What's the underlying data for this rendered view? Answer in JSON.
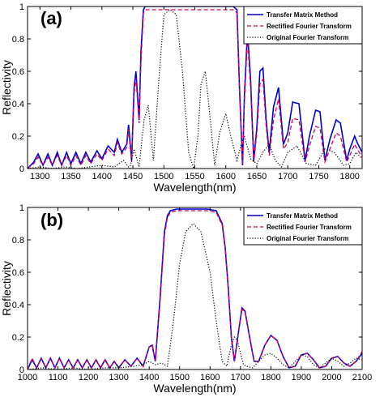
{
  "chart_data": [
    {
      "type": "line",
      "panel_label": "(a)",
      "xlabel": "Wavelength(nm)",
      "ylabel": "Reflectivity",
      "xlim": [
        1280,
        1820
      ],
      "ylim": [
        0,
        1
      ],
      "xticks": [
        "1300",
        "1350",
        "1400",
        "1450",
        "1500",
        "1550",
        "1600",
        "1650",
        "1700",
        "1750",
        "1800"
      ],
      "yticks": [
        "0",
        "0.2",
        "0.4",
        "0.6",
        "0.8",
        "1"
      ],
      "legend_position": "top-right",
      "grid": false,
      "series": [
        {
          "name": "Transfer Matrix Method",
          "color": "#0000cc",
          "style": "solid",
          "x": [
            1280,
            1290,
            1297,
            1305,
            1313,
            1320,
            1328,
            1335,
            1343,
            1350,
            1358,
            1366,
            1374,
            1382,
            1392,
            1400,
            1410,
            1420,
            1425,
            1432,
            1440,
            1443,
            1448,
            1452,
            1455,
            1460,
            1463,
            1467,
            1470,
            1475,
            1480,
            1500,
            1550,
            1600,
            1612,
            1618,
            1622,
            1627,
            1630,
            1635,
            1640,
            1645,
            1650,
            1655,
            1660,
            1665,
            1670,
            1677,
            1685,
            1693,
            1700,
            1708,
            1718,
            1728,
            1735,
            1745,
            1752,
            1760,
            1768,
            1778,
            1785,
            1795,
            1800,
            1808,
            1812,
            1820
          ],
          "y": [
            0.0,
            0.04,
            0.09,
            0.02,
            0.09,
            0.02,
            0.1,
            0.02,
            0.1,
            0.03,
            0.1,
            0.03,
            0.1,
            0.04,
            0.11,
            0.06,
            0.14,
            0.1,
            0.18,
            0.1,
            0.15,
            0.27,
            0.05,
            0.5,
            0.6,
            0.3,
            0.72,
            0.98,
            1.0,
            1.0,
            1.0,
            1.0,
            1.0,
            1.0,
            1.0,
            0.98,
            0.5,
            0.02,
            0.45,
            0.85,
            0.55,
            0.05,
            0.25,
            0.6,
            0.62,
            0.3,
            0.1,
            0.38,
            0.5,
            0.15,
            0.22,
            0.41,
            0.4,
            0.05,
            0.2,
            0.36,
            0.35,
            0.05,
            0.18,
            0.3,
            0.28,
            0.05,
            0.12,
            0.2,
            0.16,
            0.1
          ]
        },
        {
          "name": "Rectified Fourier Transform",
          "color": "#cc0066",
          "style": "dashed",
          "x": [
            1280,
            1290,
            1297,
            1305,
            1313,
            1320,
            1328,
            1335,
            1343,
            1350,
            1358,
            1366,
            1374,
            1382,
            1392,
            1400,
            1410,
            1420,
            1425,
            1432,
            1440,
            1443,
            1448,
            1452,
            1455,
            1460,
            1463,
            1467,
            1470,
            1475,
            1480,
            1500,
            1550,
            1600,
            1612,
            1618,
            1622,
            1627,
            1630,
            1635,
            1640,
            1645,
            1650,
            1655,
            1660,
            1665,
            1670,
            1677,
            1685,
            1693,
            1700,
            1708,
            1718,
            1728,
            1735,
            1745,
            1752,
            1760,
            1768,
            1778,
            1785,
            1795,
            1800,
            1808,
            1812,
            1820
          ],
          "y": [
            0.0,
            0.03,
            0.07,
            0.02,
            0.07,
            0.02,
            0.08,
            0.02,
            0.08,
            0.02,
            0.08,
            0.02,
            0.08,
            0.03,
            0.09,
            0.05,
            0.12,
            0.08,
            0.16,
            0.09,
            0.13,
            0.24,
            0.04,
            0.46,
            0.56,
            0.28,
            0.66,
            0.96,
            0.98,
            0.98,
            0.98,
            0.98,
            0.98,
            0.98,
            0.98,
            0.96,
            0.48,
            0.02,
            0.42,
            0.8,
            0.5,
            0.04,
            0.22,
            0.52,
            0.55,
            0.26,
            0.08,
            0.3,
            0.43,
            0.12,
            0.16,
            0.31,
            0.3,
            0.04,
            0.14,
            0.26,
            0.25,
            0.04,
            0.12,
            0.22,
            0.2,
            0.04,
            0.08,
            0.15,
            0.12,
            0.07
          ]
        },
        {
          "name": "Original Fourier Transform",
          "color": "#000000",
          "style": "dotted",
          "x": [
            1280,
            1300,
            1320,
            1340,
            1360,
            1380,
            1400,
            1420,
            1435,
            1445,
            1452,
            1460,
            1468,
            1475,
            1483,
            1492,
            1500,
            1510,
            1520,
            1530,
            1540,
            1548,
            1555,
            1560,
            1567,
            1575,
            1582,
            1590,
            1600,
            1608,
            1618,
            1625,
            1630,
            1640,
            1650,
            1660,
            1670,
            1680,
            1690,
            1700,
            1715,
            1730,
            1745,
            1760,
            1775,
            1790,
            1800,
            1810,
            1820
          ],
          "y": [
            0.0,
            0.01,
            0.0,
            0.01,
            0.0,
            0.01,
            0.02,
            0.01,
            0.05,
            0.0,
            0.12,
            0.01,
            0.3,
            0.39,
            0.05,
            0.55,
            0.95,
            0.98,
            0.95,
            0.6,
            0.1,
            0.0,
            0.2,
            0.52,
            0.6,
            0.3,
            0.02,
            0.22,
            0.34,
            0.2,
            0.05,
            0.15,
            0.2,
            0.06,
            0.03,
            0.1,
            0.15,
            0.05,
            0.01,
            0.1,
            0.14,
            0.03,
            0.02,
            0.12,
            0.1,
            0.02,
            0.03,
            0.1,
            0.06
          ]
        }
      ]
    },
    {
      "type": "line",
      "panel_label": "(b)",
      "xlabel": "Wavelength(nm)",
      "ylabel": "Reflectivity",
      "xlim": [
        1000,
        2100
      ],
      "ylim": [
        0,
        1
      ],
      "xticks": [
        "1000",
        "1100",
        "1200",
        "1300",
        "1400",
        "1500",
        "1600",
        "1700",
        "1800",
        "1900",
        "2000",
        "2100"
      ],
      "yticks": [
        "0",
        "0.2",
        "0.4",
        "0.6",
        "0.8",
        "1"
      ],
      "legend_position": "top-right",
      "grid": false,
      "series": [
        {
          "name": "Transfer Matrix Method",
          "color": "#0000cc",
          "style": "solid",
          "x": [
            1000,
            1015,
            1030,
            1045,
            1060,
            1075,
            1090,
            1105,
            1120,
            1135,
            1150,
            1165,
            1180,
            1195,
            1210,
            1225,
            1240,
            1255,
            1270,
            1285,
            1300,
            1320,
            1340,
            1360,
            1380,
            1400,
            1410,
            1420,
            1435,
            1450,
            1460,
            1470,
            1490,
            1520,
            1550,
            1590,
            1620,
            1640,
            1650,
            1660,
            1670,
            1680,
            1695,
            1705,
            1715,
            1730,
            1745,
            1760,
            1780,
            1800,
            1820,
            1840,
            1860,
            1880,
            1900,
            1920,
            1940,
            1960,
            1980,
            2000,
            2020,
            2040,
            2060,
            2080,
            2100
          ],
          "y": [
            0.0,
            0.06,
            0.01,
            0.07,
            0.01,
            0.07,
            0.01,
            0.07,
            0.01,
            0.06,
            0.01,
            0.06,
            0.01,
            0.06,
            0.01,
            0.06,
            0.01,
            0.06,
            0.01,
            0.05,
            0.01,
            0.06,
            0.02,
            0.07,
            0.02,
            0.14,
            0.15,
            0.05,
            0.42,
            0.85,
            0.95,
            0.98,
            0.99,
            0.99,
            0.99,
            0.99,
            0.98,
            0.9,
            0.75,
            0.5,
            0.2,
            0.05,
            0.25,
            0.38,
            0.36,
            0.2,
            0.05,
            0.05,
            0.15,
            0.21,
            0.18,
            0.08,
            0.01,
            0.02,
            0.09,
            0.1,
            0.06,
            0.01,
            0.02,
            0.07,
            0.08,
            0.04,
            0.02,
            0.05,
            0.1
          ]
        },
        {
          "name": "Rectified Fourier Transform",
          "color": "#cc0066",
          "style": "dashed",
          "x": [
            1000,
            1015,
            1030,
            1045,
            1060,
            1075,
            1090,
            1105,
            1120,
            1135,
            1150,
            1165,
            1180,
            1195,
            1210,
            1225,
            1240,
            1255,
            1270,
            1285,
            1300,
            1320,
            1340,
            1360,
            1380,
            1400,
            1410,
            1420,
            1435,
            1450,
            1460,
            1470,
            1490,
            1520,
            1550,
            1590,
            1620,
            1640,
            1650,
            1660,
            1670,
            1680,
            1695,
            1705,
            1715,
            1730,
            1745,
            1760,
            1780,
            1800,
            1820,
            1840,
            1860,
            1880,
            1900,
            1920,
            1940,
            1960,
            1980,
            2000,
            2020,
            2040,
            2060,
            2080,
            2100
          ],
          "y": [
            0.0,
            0.07,
            0.01,
            0.07,
            0.01,
            0.07,
            0.01,
            0.07,
            0.01,
            0.06,
            0.01,
            0.06,
            0.01,
            0.06,
            0.01,
            0.06,
            0.01,
            0.06,
            0.01,
            0.05,
            0.01,
            0.06,
            0.02,
            0.07,
            0.02,
            0.14,
            0.15,
            0.05,
            0.4,
            0.83,
            0.94,
            0.97,
            0.98,
            0.98,
            0.98,
            0.98,
            0.97,
            0.89,
            0.74,
            0.49,
            0.2,
            0.05,
            0.25,
            0.37,
            0.36,
            0.2,
            0.05,
            0.05,
            0.15,
            0.21,
            0.18,
            0.08,
            0.01,
            0.02,
            0.09,
            0.1,
            0.06,
            0.01,
            0.02,
            0.07,
            0.08,
            0.04,
            0.02,
            0.05,
            0.11
          ]
        },
        {
          "name": "Original Fourier Transform",
          "color": "#000000",
          "style": "dotted",
          "x": [
            1000,
            1050,
            1100,
            1150,
            1200,
            1250,
            1300,
            1350,
            1380,
            1400,
            1420,
            1440,
            1460,
            1480,
            1500,
            1520,
            1545,
            1570,
            1600,
            1620,
            1640,
            1655,
            1670,
            1680,
            1690,
            1700,
            1710,
            1720,
            1740,
            1760,
            1780,
            1800,
            1820,
            1840,
            1860,
            1880,
            1900,
            1920,
            1940,
            1960,
            1980,
            2000,
            2020,
            2040,
            2060,
            2080,
            2100
          ],
          "y": [
            0.0,
            0.01,
            0.0,
            0.01,
            0.0,
            0.01,
            0.01,
            0.02,
            0.03,
            0.05,
            0.03,
            0.04,
            0.02,
            0.3,
            0.65,
            0.85,
            0.9,
            0.85,
            0.6,
            0.3,
            0.05,
            0.02,
            0.15,
            0.2,
            0.18,
            0.1,
            0.03,
            0.02,
            0.01,
            0.05,
            0.09,
            0.1,
            0.07,
            0.03,
            0.01,
            0.05,
            0.09,
            0.08,
            0.03,
            0.01,
            0.04,
            0.07,
            0.05,
            0.02,
            0.04,
            0.07,
            0.06
          ]
        }
      ]
    }
  ]
}
